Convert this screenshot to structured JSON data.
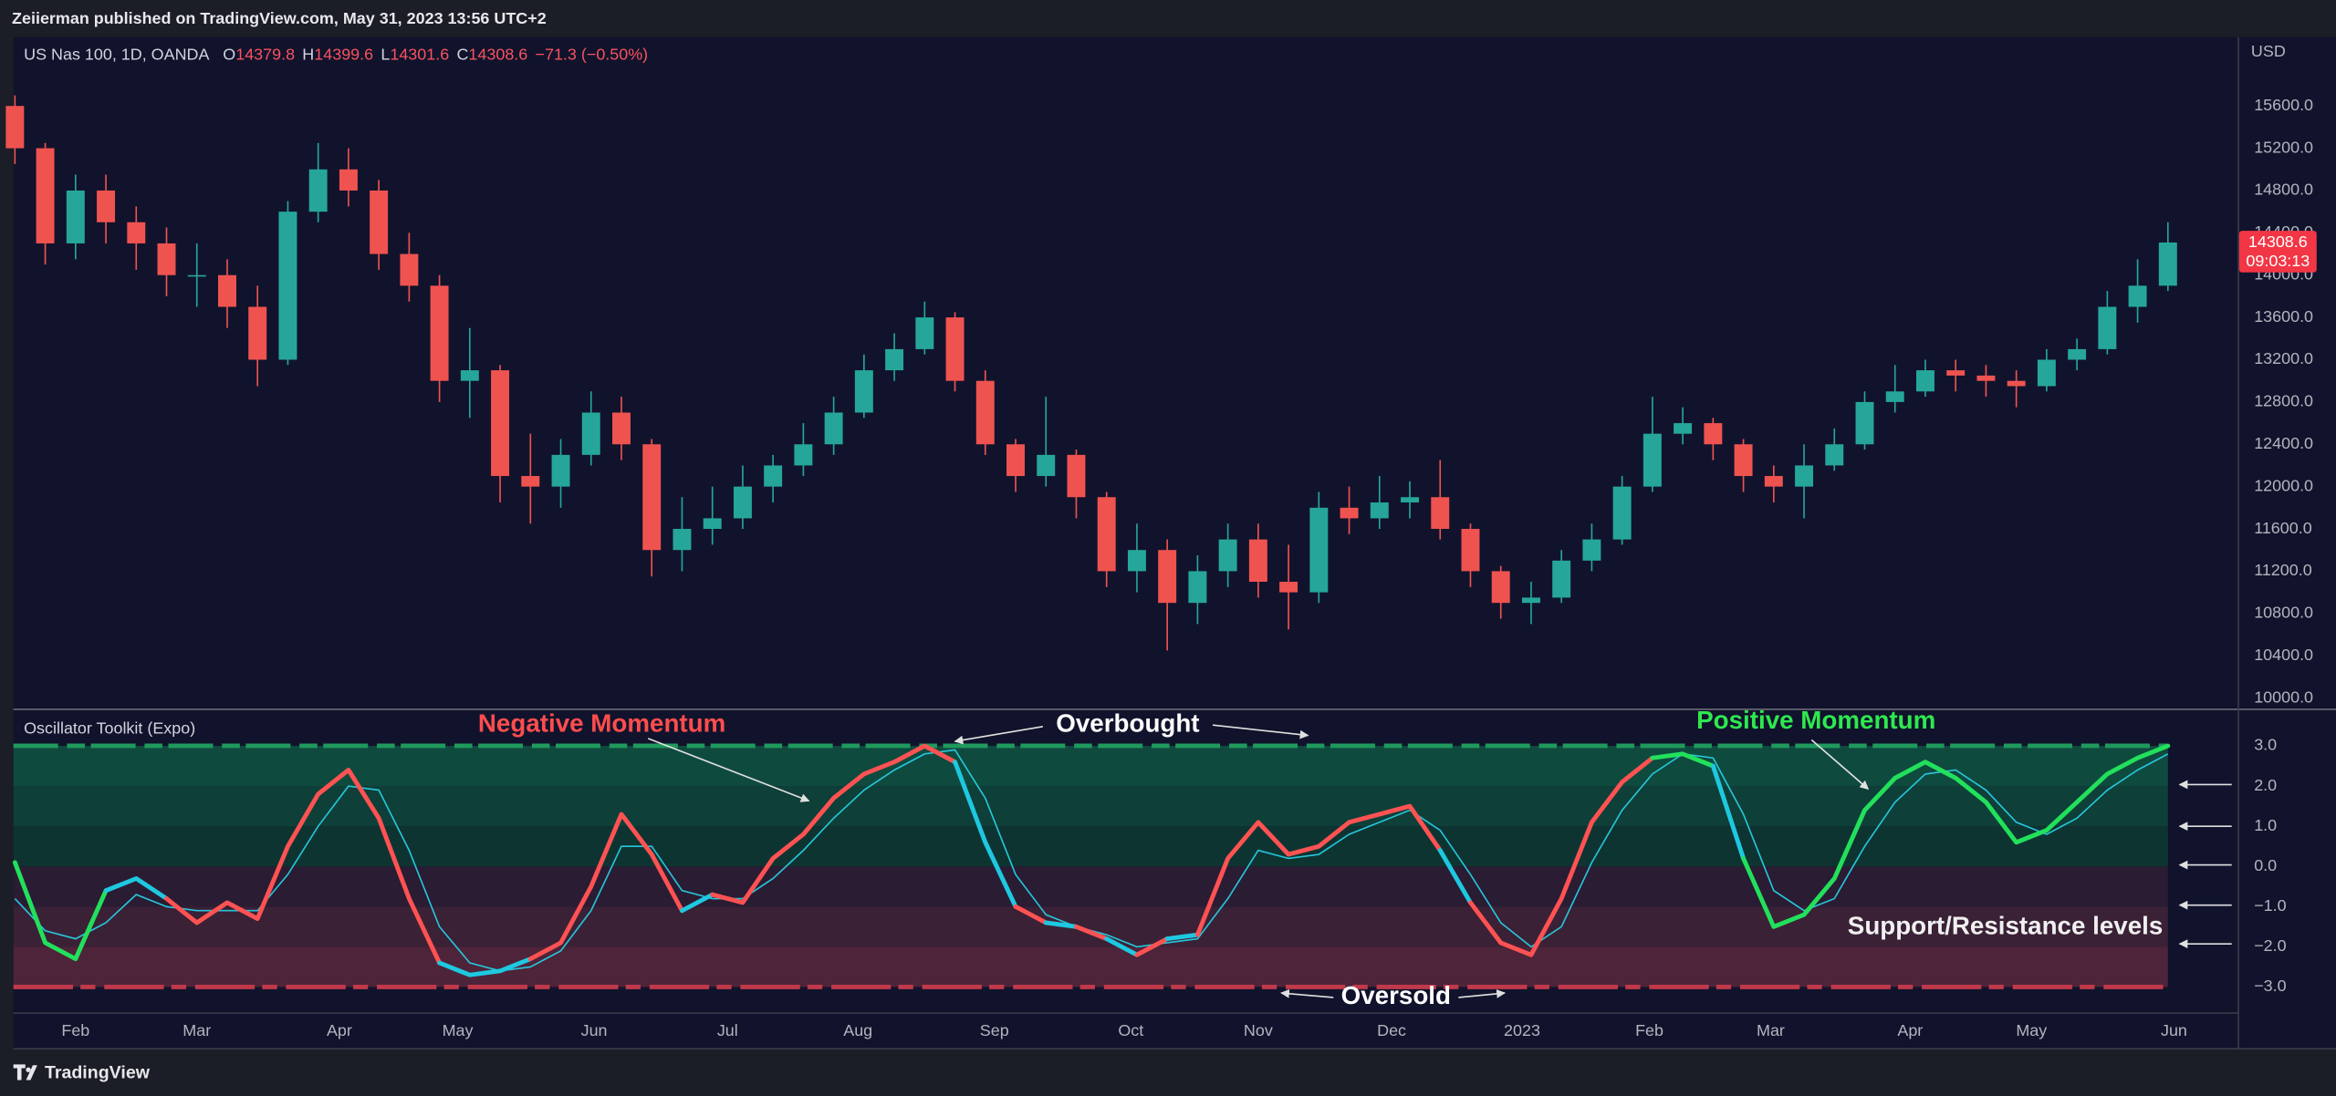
{
  "header": {
    "publisher": "Zeiierman published on TradingView.com, May 31, 2023 13:56 UTC+2",
    "symbol": "US Nas 100, 1D, OANDA",
    "ohlc": [
      {
        "label": "O",
        "value": "14379.8"
      },
      {
        "label": "H",
        "value": "14399.6"
      },
      {
        "label": "L",
        "value": "14301.6"
      },
      {
        "label": "C",
        "value": "14308.6"
      }
    ],
    "change": "−71.3 (−0.50%)",
    "currency": "USD",
    "last_price": "14308.6",
    "countdown": "09:03:13",
    "footer": "TradingView"
  },
  "chart_data": [
    {
      "type": "candlestick",
      "up_color": "#26a69a",
      "down_color": "#ef5350",
      "open": [
        15600,
        15200,
        14300,
        14800,
        14500,
        14300,
        14000,
        14000,
        13700,
        13200,
        14600,
        15000,
        14800,
        14200,
        13900,
        13000,
        13100,
        12100,
        12000,
        12300,
        12700,
        12400,
        11400,
        11600,
        11700,
        12000,
        12200,
        12400,
        12700,
        13100,
        13300,
        13600,
        13000,
        12400,
        12100,
        12300,
        11900,
        11200,
        11400,
        10900,
        11200,
        11500,
        11100,
        11000,
        11800,
        11700,
        11850,
        11900,
        11600,
        11200,
        10900,
        10950,
        11300,
        11500,
        12000,
        12500,
        12600,
        12400,
        12100,
        12000,
        12200,
        12400,
        12800,
        12900,
        13100,
        13050,
        13000,
        12950,
        13200,
        13300,
        13700,
        13900
      ],
      "high": [
        15700,
        15250,
        14950,
        14950,
        14650,
        14450,
        14300,
        14150,
        13900,
        14700,
        15250,
        15200,
        14900,
        14400,
        14000,
        13500,
        13150,
        12500,
        12450,
        12900,
        12850,
        12450,
        11900,
        12000,
        12200,
        12300,
        12600,
        12850,
        13250,
        13450,
        13750,
        13650,
        13100,
        12450,
        12850,
        12350,
        11950,
        11650,
        11500,
        11350,
        11650,
        11650,
        11450,
        11950,
        12000,
        12100,
        12050,
        12250,
        11650,
        11250,
        11100,
        11400,
        11650,
        12100,
        12850,
        12750,
        12650,
        12450,
        12200,
        12400,
        12550,
        12900,
        13150,
        13200,
        13200,
        13150,
        13100,
        13300,
        13400,
        13850,
        14150,
        14500
      ],
      "low": [
        15050,
        14100,
        14150,
        14300,
        14050,
        13800,
        13700,
        13500,
        12950,
        13150,
        14500,
        14650,
        14050,
        13750,
        12800,
        12650,
        11850,
        11650,
        11800,
        12200,
        12250,
        11150,
        11200,
        11450,
        11600,
        11850,
        12100,
        12300,
        12650,
        13000,
        13250,
        12900,
        12300,
        11950,
        12000,
        11700,
        11050,
        11000,
        10450,
        10700,
        11050,
        10950,
        10650,
        10900,
        11550,
        11600,
        11700,
        11500,
        11050,
        10750,
        10700,
        10900,
        11200,
        11450,
        11950,
        12400,
        12250,
        11950,
        11850,
        11700,
        12150,
        12350,
        12700,
        12850,
        12900,
        12850,
        12750,
        12900,
        13100,
        13250,
        13550,
        13850
      ],
      "close": [
        15200,
        14300,
        14800,
        14500,
        14300,
        14000,
        14000,
        13700,
        13200,
        14600,
        15000,
        14800,
        14200,
        13900,
        13000,
        13100,
        12100,
        12000,
        12300,
        12700,
        12400,
        11400,
        11600,
        11700,
        12000,
        12200,
        12400,
        12700,
        13100,
        13300,
        13600,
        13000,
        12400,
        12100,
        12300,
        11900,
        11200,
        11400,
        10900,
        11200,
        11500,
        11100,
        11000,
        11800,
        11700,
        11850,
        11900,
        11600,
        11200,
        10900,
        10950,
        11300,
        11500,
        12000,
        12500,
        12600,
        12400,
        12100,
        12000,
        12200,
        12400,
        12800,
        12900,
        13100,
        13050,
        13000,
        12950,
        13200,
        13300,
        13700,
        13900,
        14308.6
      ],
      "xlim": [
        -0.05,
        73.3
      ],
      "ylim": [
        9900,
        16250
      ],
      "yticks": [
        {
          "value": 10000,
          "label": "10000.0"
        },
        {
          "value": 10400,
          "label": "10400.0"
        },
        {
          "value": 10800,
          "label": "10800.0"
        },
        {
          "value": 11200,
          "label": "11200.0"
        },
        {
          "value": 11600,
          "label": "11600.0"
        },
        {
          "value": 12000,
          "label": "12000.0"
        },
        {
          "value": 12400,
          "label": "12400.0"
        },
        {
          "value": 12800,
          "label": "12800.0"
        },
        {
          "value": 13200,
          "label": "13200.0"
        },
        {
          "value": 13600,
          "label": "13600.0"
        },
        {
          "value": 14000,
          "label": "14000.0"
        },
        {
          "value": 14400,
          "label": "14400.0"
        },
        {
          "value": 14800,
          "label": "14800.0"
        },
        {
          "value": 15200,
          "label": "15200.0"
        },
        {
          "value": 15600,
          "label": "15600.0"
        }
      ]
    },
    {
      "type": "line",
      "title": "Oscillator Toolkit (Expo)",
      "series": [
        {
          "colors": [
            "#22e05b",
            "#22e05b",
            "#22e05b",
            "#22e05b",
            "#1ec8e0",
            "#1ec8e0",
            "#ff5252",
            "#ff5252",
            "#ff5252",
            "#ff5252",
            "#ff5252",
            "#ff5252",
            "#ff5252",
            "#ff5252",
            "#ff5252",
            "#1ec8e0",
            "#1ec8e0",
            "#1ec8e0",
            "#ff5252",
            "#ff5252",
            "#ff5252",
            "#ff5252",
            "#ff5252",
            "#1ec8e0",
            "#ff5252",
            "#ff5252",
            "#ff5252",
            "#ff5252",
            "#ff5252",
            "#ff5252",
            "#ff5252",
            "#ff5252",
            "#1ec8e0",
            "#1ec8e0",
            "#ff5252",
            "#1ec8e0",
            "#ff5252",
            "#1ec8e0",
            "#ff5252",
            "#1ec8e0",
            "#ff5252",
            "#ff5252",
            "#ff5252",
            "#ff5252",
            "#ff5252",
            "#ff5252",
            "#ff5252",
            "#ff5252",
            "#1ec8e0",
            "#ff5252",
            "#ff5252",
            "#ff5252",
            "#ff5252",
            "#ff5252",
            "#ff5252",
            "#22e05b",
            "#22e05b",
            "#1ec8e0",
            "#22e05b",
            "#22e05b",
            "#22e05b",
            "#22e05b",
            "#22e05b",
            "#22e05b",
            "#22e05b",
            "#22e05b",
            "#22e05b",
            "#22e05b",
            "#22e05b",
            "#22e05b",
            "#22e05b",
            "#22e05b"
          ],
          "values": [
            0.1,
            -1.9,
            -2.3,
            -0.6,
            -0.3,
            -0.8,
            -1.4,
            -0.9,
            -1.3,
            0.5,
            1.8,
            2.4,
            1.2,
            -0.8,
            -2.4,
            -2.7,
            -2.6,
            -2.3,
            -1.9,
            -0.5,
            1.3,
            0.3,
            -1.1,
            -0.7,
            -0.9,
            0.2,
            0.8,
            1.7,
            2.3,
            2.6,
            3.0,
            2.6,
            0.6,
            -1.0,
            -1.4,
            -1.5,
            -1.8,
            -2.2,
            -1.8,
            -1.7,
            0.2,
            1.1,
            0.3,
            0.5,
            1.1,
            1.3,
            1.5,
            0.4,
            -0.9,
            -1.9,
            -2.2,
            -0.8,
            1.1,
            2.1,
            2.7,
            2.8,
            2.5,
            0.2,
            -1.5,
            -1.2,
            -0.3,
            1.4,
            2.2,
            2.6,
            2.2,
            1.6,
            0.6,
            0.9,
            1.6,
            2.3,
            2.7,
            3.0
          ]
        },
        {
          "color": "#26c6da",
          "values": [
            -0.8,
            -1.6,
            -1.8,
            -1.4,
            -0.7,
            -1.0,
            -1.1,
            -1.1,
            -1.1,
            -0.2,
            1.0,
            2.0,
            1.9,
            0.4,
            -1.5,
            -2.4,
            -2.6,
            -2.5,
            -2.1,
            -1.1,
            0.5,
            0.5,
            -0.6,
            -0.8,
            -0.8,
            -0.3,
            0.4,
            1.2,
            1.9,
            2.4,
            2.8,
            2.9,
            1.7,
            -0.2,
            -1.2,
            -1.5,
            -1.7,
            -2.0,
            -1.9,
            -1.8,
            -0.8,
            0.4,
            0.2,
            0.3,
            0.8,
            1.1,
            1.4,
            0.9,
            -0.2,
            -1.4,
            -2.0,
            -1.5,
            0.1,
            1.4,
            2.3,
            2.8,
            2.7,
            1.3,
            -0.6,
            -1.1,
            -0.8,
            0.5,
            1.6,
            2.3,
            2.4,
            1.9,
            1.1,
            0.8,
            1.2,
            1.9,
            2.4,
            2.8
          ]
        }
      ],
      "zone_colors": [
        "#0f4a3e",
        "#0e3f38",
        "#0e3432",
        "#2a1c33",
        "#3a2136",
        "#4d2439"
      ],
      "annotations": [
        {
          "text": "Negative Momentum",
          "color": "#ff4d4d"
        },
        {
          "text": "Overbought",
          "color": "#ffffff"
        },
        {
          "text": "Positive Momentum",
          "color": "#2ee84f"
        },
        {
          "text": "Support/Resistance levels",
          "color": "#f0f0f0"
        },
        {
          "text": "Oversold",
          "color": "#ffffff"
        }
      ],
      "xlim": [
        -0.05,
        73.3
      ],
      "xticks": [
        {
          "value": 2.0,
          "label": "Feb"
        },
        {
          "value": 6.0,
          "label": "Mar"
        },
        {
          "value": 10.7,
          "label": "Apr"
        },
        {
          "value": 14.6,
          "label": "May"
        },
        {
          "value": 19.1,
          "label": "Jun"
        },
        {
          "value": 23.5,
          "label": "Jul"
        },
        {
          "value": 27.8,
          "label": "Aug"
        },
        {
          "value": 32.3,
          "label": "Sep"
        },
        {
          "value": 36.8,
          "label": "Oct"
        },
        {
          "value": 41.0,
          "label": "Nov"
        },
        {
          "value": 45.4,
          "label": "Dec"
        },
        {
          "value": 49.7,
          "label": "2023"
        },
        {
          "value": 53.9,
          "label": "Feb"
        },
        {
          "value": 57.9,
          "label": "Mar"
        },
        {
          "value": 62.5,
          "label": "Apr"
        },
        {
          "value": 66.5,
          "label": "May"
        },
        {
          "value": 71.2,
          "label": "Jun"
        }
      ],
      "ylim": [
        -3.63,
        3.89
      ],
      "yticks": [
        {
          "value": 3,
          "label": "3.0"
        },
        {
          "value": 2,
          "label": "2.0"
        },
        {
          "value": 1,
          "label": "1.0"
        },
        {
          "value": 0,
          "label": "0.0"
        },
        {
          "value": -1,
          "label": "−1.0"
        },
        {
          "value": -2,
          "label": "−2.0"
        },
        {
          "value": -3,
          "label": "−3.0"
        }
      ]
    }
  ]
}
